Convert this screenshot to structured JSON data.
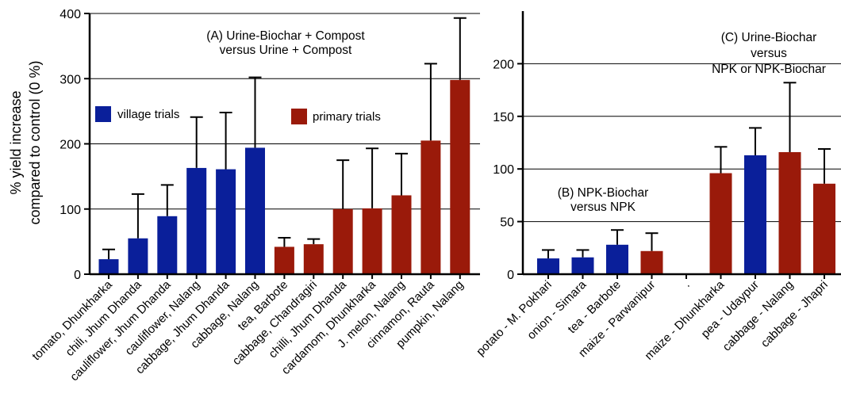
{
  "colors": {
    "village": "#0a1f9a",
    "primary": "#9a1a0a",
    "axis": "#000000",
    "grid": "#000000"
  },
  "chart_data": [
    {
      "type": "bar",
      "ylabel": [
        "% yield increase",
        "compared to control (0 %)"
      ],
      "ylim": [
        0,
        400
      ],
      "yticks": [
        0,
        100,
        200,
        300,
        400
      ],
      "grid": "horizontal",
      "annotation": [
        "(A) Urine-Biochar + Compost",
        "versus Urine + Compost"
      ],
      "legend": [
        {
          "label": "village trials",
          "color_key": "village"
        },
        {
          "label": "primary trials",
          "color_key": "primary"
        }
      ],
      "categories": [
        "tomato, Dhunkharka",
        "chili, Jhum Dhanda",
        "cauliflower, Jhum Dhanda",
        "cauliflower, Nalang",
        "cabbage, Jhum Dhanda",
        "cabbage, Nalang",
        "tea, Barbote",
        "cabbage, Chandragiri",
        "chilli, Jhum Dhanda",
        "cardamom, Dhunkharka",
        "J. melon,   Nalang",
        "cinnamon, Rauta",
        "pumpkin, Nalang"
      ],
      "values": [
        23,
        55,
        89,
        163,
        161,
        194,
        42,
        46,
        100,
        101,
        121,
        205,
        298
      ],
      "error": [
        15,
        68,
        48,
        78,
        87,
        108,
        14,
        8,
        75,
        92,
        64,
        118,
        95
      ],
      "group": [
        "village",
        "village",
        "village",
        "village",
        "village",
        "village",
        "primary",
        "primary",
        "primary",
        "primary",
        "primary",
        "primary",
        "primary"
      ]
    },
    {
      "type": "bar",
      "ylim": [
        0,
        250
      ],
      "yticks": [
        0,
        50,
        100,
        150,
        200
      ],
      "grid": "horizontal",
      "annotations": [
        {
          "id": "B",
          "lines": [
            "(B) NPK-Biochar",
            "versus NPK"
          ]
        },
        {
          "id": "C",
          "lines": [
            "(C) Urine-Biochar",
            "versus",
            "NPK or NPK-Biochar"
          ]
        }
      ],
      "categories": [
        "potato - M. Pokhari",
        "onion - Simara",
        "tea - Barbote",
        "maize - Parwanipur",
        ".",
        "maize - Dhunkharka",
        "pea - Udaypur",
        "cabbage - Nalang",
        "cabbage - Jhapri"
      ],
      "values": [
        15,
        16,
        28,
        22,
        null,
        96,
        113,
        116,
        86
      ],
      "error": [
        8,
        7,
        14,
        17,
        null,
        25,
        26,
        66,
        33
      ],
      "group": [
        "village",
        "village",
        "village",
        "primary",
        "none",
        "primary",
        "village",
        "primary",
        "primary"
      ]
    }
  ]
}
